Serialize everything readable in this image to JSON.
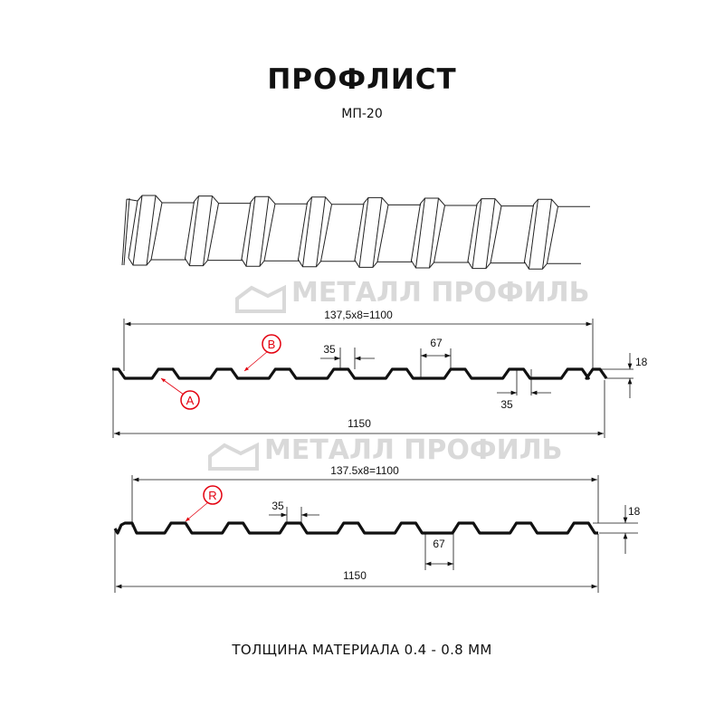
{
  "header": {
    "title": "ПРОФЛИСТ",
    "subtitle": "МП-20"
  },
  "watermark": "МЕТАЛЛ ПРОФИЛЬ",
  "profile_a": {
    "pitch_label": "137,5x8=1100",
    "rib_top_label": "35",
    "rib_base_label": "67",
    "rib_top_label_2": "35",
    "height_label": "18",
    "width_label": "1150",
    "marker_a": "A",
    "marker_b": "B"
  },
  "profile_b": {
    "pitch_label": "137.5x8=1100",
    "rib_top_label": "35",
    "rib_base_label": "67",
    "height_label": "18",
    "width_label": "1150",
    "marker_r": "R"
  },
  "footer": {
    "thickness": "ТОЛЩИНА МАТЕРИАЛА 0.4 - 0.8 ММ"
  },
  "colors": {
    "marker": "#e3000f",
    "profile": "#111111",
    "watermark": "#d9d9d9"
  }
}
